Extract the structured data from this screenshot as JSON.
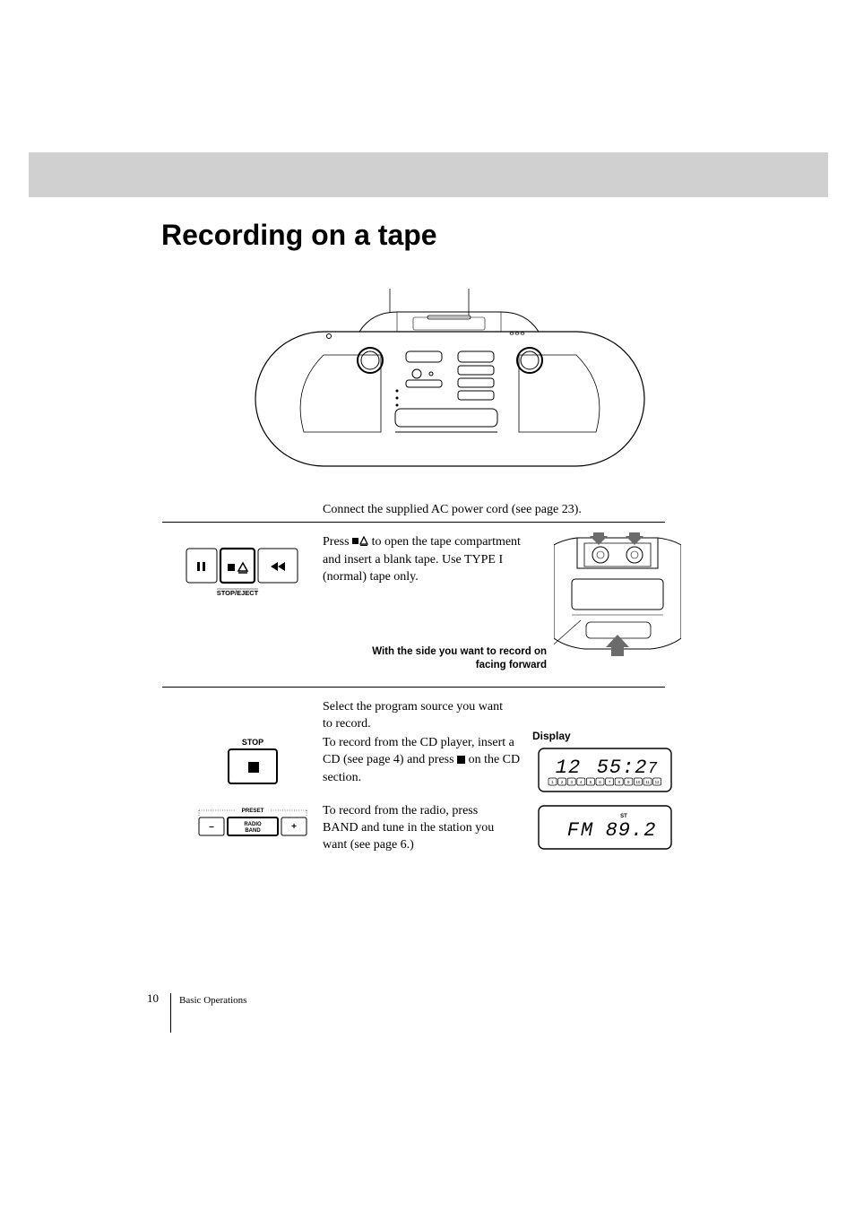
{
  "header": {
    "title": "Recording on a tape"
  },
  "intro": {
    "text": "Connect the supplied AC power cord (see page 23)."
  },
  "step1": {
    "text_before_icon": "Press ",
    "text_after_icon": " to open the tape compartment and insert a blank tape. Use TYPE I (normal) tape only.",
    "caption": "With the side you want to record on facing forward",
    "button_label": "STOP/EJECT"
  },
  "step2": {
    "intro": "Select the program source you want to record.",
    "cd_text_before": "To record from the CD player, insert a CD (see page 4) and press ",
    "cd_text_after": " on the CD section.",
    "radio_text": "To record from the radio, press BAND and tune in the station you want (see page 6.)",
    "stop_label": "STOP",
    "preset_label": "PRESET",
    "radio_band_label": "RADIO\nBAND",
    "display_label": "Display"
  },
  "lcd": {
    "line1_tracks": "12",
    "line1_time": "55:27",
    "line2_band": "FM",
    "line2_freq": "89.2",
    "line2_st": "ST",
    "track_indicator_count": 12
  },
  "footer": {
    "page": "10",
    "section": "Basic Operations"
  },
  "colors": {
    "band": "#d0d0d0",
    "text": "#000000",
    "bg": "#ffffff",
    "arrow_fill": "#6b6b6b"
  }
}
